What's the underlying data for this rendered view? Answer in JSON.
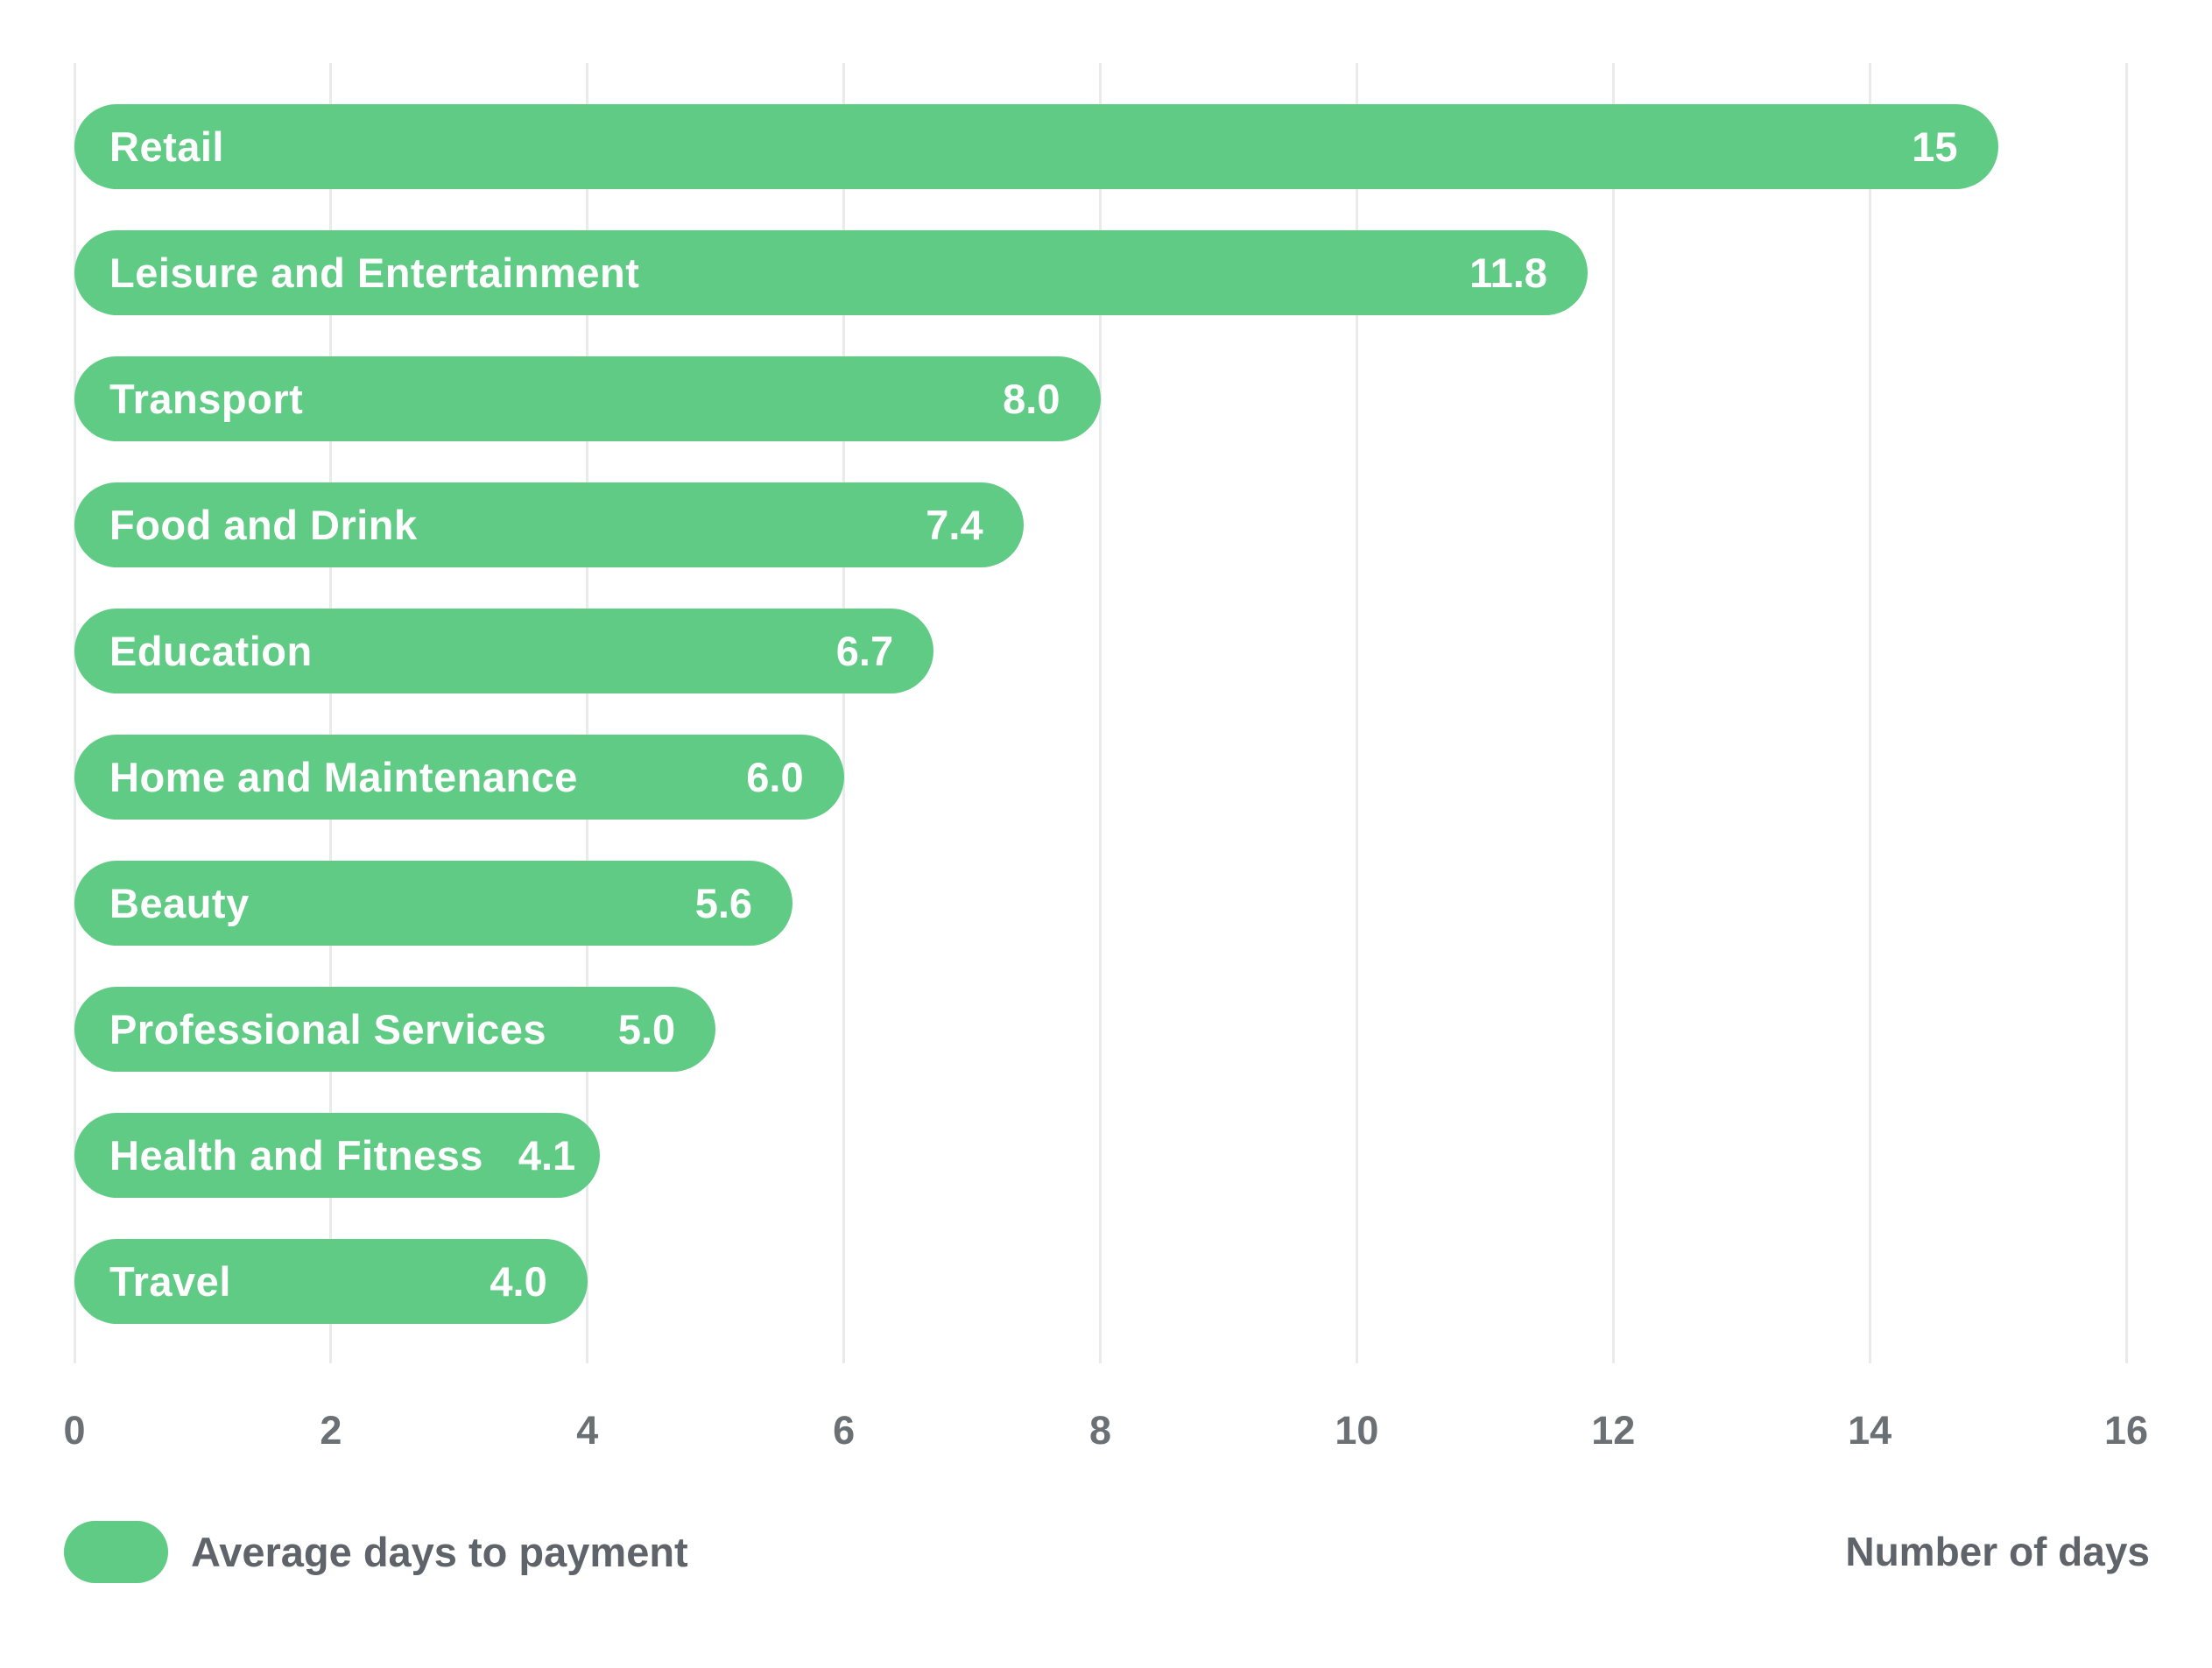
{
  "chart_data": {
    "type": "bar",
    "orientation": "horizontal",
    "categories": [
      "Retail",
      "Leisure and Entertainment",
      "Transport",
      "Food and Drink",
      "Education",
      "Home and Maintenance",
      "Beauty",
      "Professional Services",
      "Health and Fitness",
      "Travel"
    ],
    "values": [
      15,
      11.8,
      8.0,
      7.4,
      6.7,
      6.0,
      5.6,
      5.0,
      4.1,
      4.0
    ],
    "value_labels": [
      "15",
      "11.8",
      "8.0",
      "7.4",
      "6.7",
      "6.0",
      "5.6",
      "5.0",
      "4.1",
      "4.0"
    ],
    "series_name": "Average days to payment",
    "title": "",
    "xlabel": "Number of days",
    "ylabel": "",
    "xlim": [
      0,
      16
    ],
    "x_ticks": [
      0,
      2,
      4,
      6,
      8,
      10,
      12,
      14,
      16
    ],
    "grid": "vertical-only",
    "legend_position": "bottom-left",
    "bar_color": "#60cb85"
  },
  "legend": {
    "label": "Average days to payment",
    "swatch_color": "#60cb85"
  },
  "axis": {
    "title": "Number of days",
    "tick_labels": [
      "0",
      "2",
      "4",
      "6",
      "8",
      "10",
      "12",
      "14",
      "16"
    ]
  },
  "colors": {
    "bar": "#60cb85",
    "bar_text": "#ffffff",
    "gridline": "#e9eaec",
    "tick_text": "#6b7074",
    "footer_text": "#5f646a",
    "background": "#ffffff"
  }
}
